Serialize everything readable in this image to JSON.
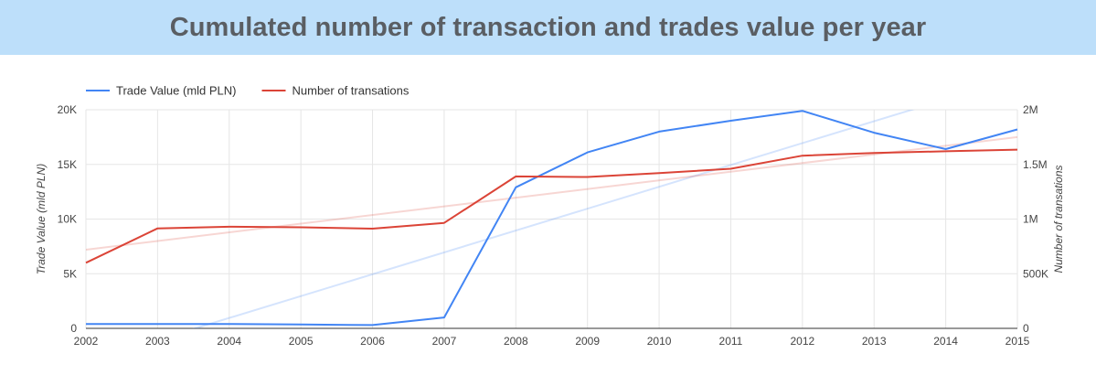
{
  "title": "Cumulated number of transaction and trades value per year",
  "colors": {
    "trade": "#4285f4",
    "count": "#db4437",
    "grid": "#e6e6e6",
    "title_bg": "#bddffa"
  },
  "chart_data": {
    "type": "line",
    "title": "Cumulated number of transaction and trades value per year",
    "x": [
      2002,
      2003,
      2004,
      2005,
      2006,
      2007,
      2008,
      2009,
      2010,
      2011,
      2012,
      2013,
      2014,
      2015
    ],
    "x_ticks": [
      "2002",
      "2003",
      "2004",
      "2005",
      "2006",
      "2007",
      "2008",
      "2009",
      "2010",
      "2011",
      "2012",
      "2013",
      "2014",
      "2015"
    ],
    "y_left": {
      "label": "Trade Value (mld PLN)",
      "range": [
        0,
        20000
      ],
      "ticks": [
        "0",
        "5K",
        "10K",
        "15K",
        "20K"
      ]
    },
    "y_right": {
      "label": "Number of transations",
      "range": [
        0,
        2000000
      ],
      "ticks": [
        "0",
        "500K",
        "1M",
        "1.5M",
        "2M"
      ]
    },
    "series": [
      {
        "name": "Trade Value (mld PLN)",
        "axis": "left",
        "color": "#4285f4",
        "values": [
          400,
          400,
          400,
          350,
          300,
          1000,
          12900,
          16100,
          18000,
          19000,
          19900,
          17900,
          16400,
          18200
        ],
        "trendline": {
          "start": [
            2002,
            -3050
          ],
          "end": [
            2015,
            22950
          ]
        }
      },
      {
        "name": "Number of transations",
        "axis": "right",
        "color": "#db4437",
        "values": [
          600000,
          915000,
          930000,
          925000,
          912000,
          965000,
          1390000,
          1385000,
          1420000,
          1460000,
          1580000,
          1605000,
          1620000,
          1635000
        ],
        "trendline": {
          "start": [
            2002,
            720000
          ],
          "end": [
            2015,
            1750000
          ]
        }
      }
    ],
    "legend_position": "top-left",
    "grid": true
  }
}
